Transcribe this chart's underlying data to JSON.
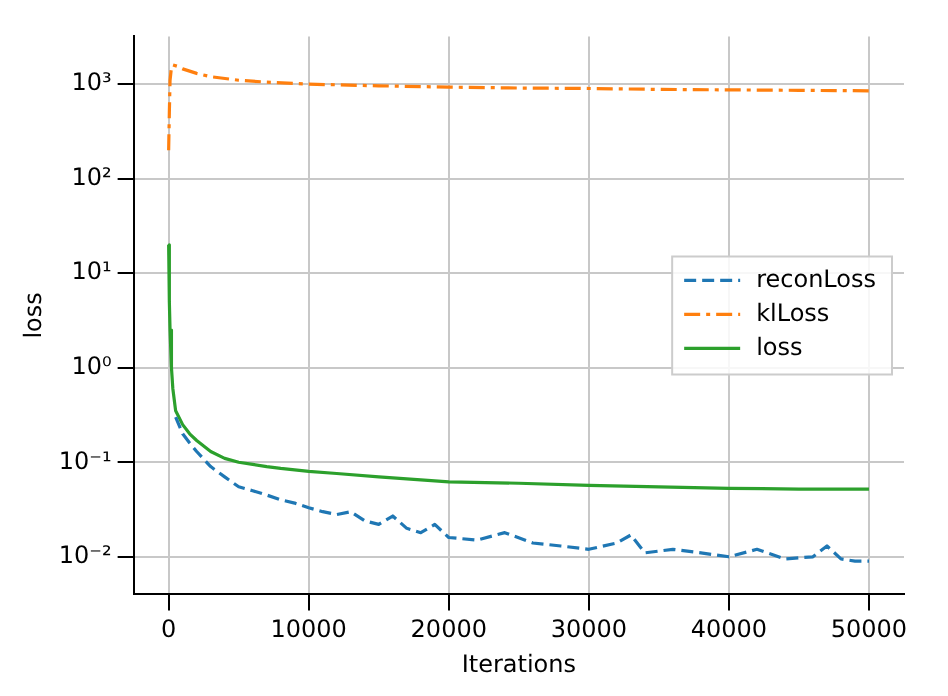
{
  "chart_data": {
    "type": "line",
    "xlabel": "Iterations",
    "ylabel": "loss",
    "log": "y",
    "grid": true,
    "legend": "right",
    "marker": "none",
    "xlim": [
      -2500,
      52500
    ],
    "xticks": [
      0,
      10000,
      20000,
      30000,
      40000,
      50000
    ],
    "ylim": [
      0.004,
      3200
    ],
    "yticks": [
      {
        "value": 0.01,
        "label": "10⁻²"
      },
      {
        "value": 0.1,
        "label": "10⁻¹"
      },
      {
        "value": 1,
        "label": "10⁰"
      },
      {
        "value": 10,
        "label": "10¹"
      },
      {
        "value": 100,
        "label": "10²"
      },
      {
        "value": 1000,
        "label": "10³"
      }
    ],
    "series": [
      {
        "name": "reconLoss",
        "color": "#1f77b4",
        "line_style": "dashed",
        "x": [
          500,
          1000,
          1500,
          2000,
          3000,
          4000,
          5000,
          6000,
          7000,
          8000,
          9000,
          10000,
          11000,
          12000,
          13000,
          14000,
          15000,
          16000,
          17000,
          18000,
          19000,
          20000,
          22000,
          24000,
          26000,
          28000,
          30000,
          32000,
          33000,
          34000,
          36000,
          38000,
          40000,
          42000,
          44000,
          46000,
          47000,
          48000,
          49000,
          50000
        ],
        "values": [
          0.3,
          0.2,
          0.16,
          0.13,
          0.09,
          0.07,
          0.055,
          0.05,
          0.045,
          0.04,
          0.037,
          0.033,
          0.03,
          0.028,
          0.03,
          0.024,
          0.022,
          0.027,
          0.02,
          0.018,
          0.022,
          0.016,
          0.015,
          0.018,
          0.014,
          0.013,
          0.012,
          0.014,
          0.017,
          0.011,
          0.012,
          0.011,
          0.01,
          0.012,
          0.0095,
          0.01,
          0.013,
          0.0095,
          0.009,
          0.009
        ]
      },
      {
        "name": "klLoss",
        "color": "#ff7f0e",
        "line_style": "dashdot",
        "x": [
          0,
          50,
          100,
          200,
          300,
          600,
          1000,
          2000,
          3000,
          5000,
          7000,
          10000,
          15000,
          20000,
          25000,
          30000,
          35000,
          40000,
          45000,
          50000
        ],
        "values": [
          200,
          500,
          1100,
          1500,
          1600,
          1550,
          1450,
          1300,
          1200,
          1100,
          1050,
          1000,
          960,
          930,
          910,
          900,
          880,
          870,
          860,
          850
        ]
      },
      {
        "name": "loss",
        "color": "#2ca02c",
        "line_style": "solid",
        "x": [
          0,
          50,
          100,
          200,
          300,
          500,
          1000,
          1500,
          2000,
          3000,
          4000,
          5000,
          6000,
          7000,
          8000,
          10000,
          12000,
          15000,
          18000,
          20000,
          25000,
          30000,
          35000,
          40000,
          45000,
          50000
        ],
        "values": [
          20,
          5,
          2.5,
          1,
          0.6,
          0.35,
          0.25,
          0.2,
          0.17,
          0.13,
          0.11,
          0.1,
          0.095,
          0.09,
          0.086,
          0.08,
          0.076,
          0.07,
          0.065,
          0.062,
          0.06,
          0.057,
          0.055,
          0.053,
          0.052,
          0.052
        ]
      }
    ]
  }
}
